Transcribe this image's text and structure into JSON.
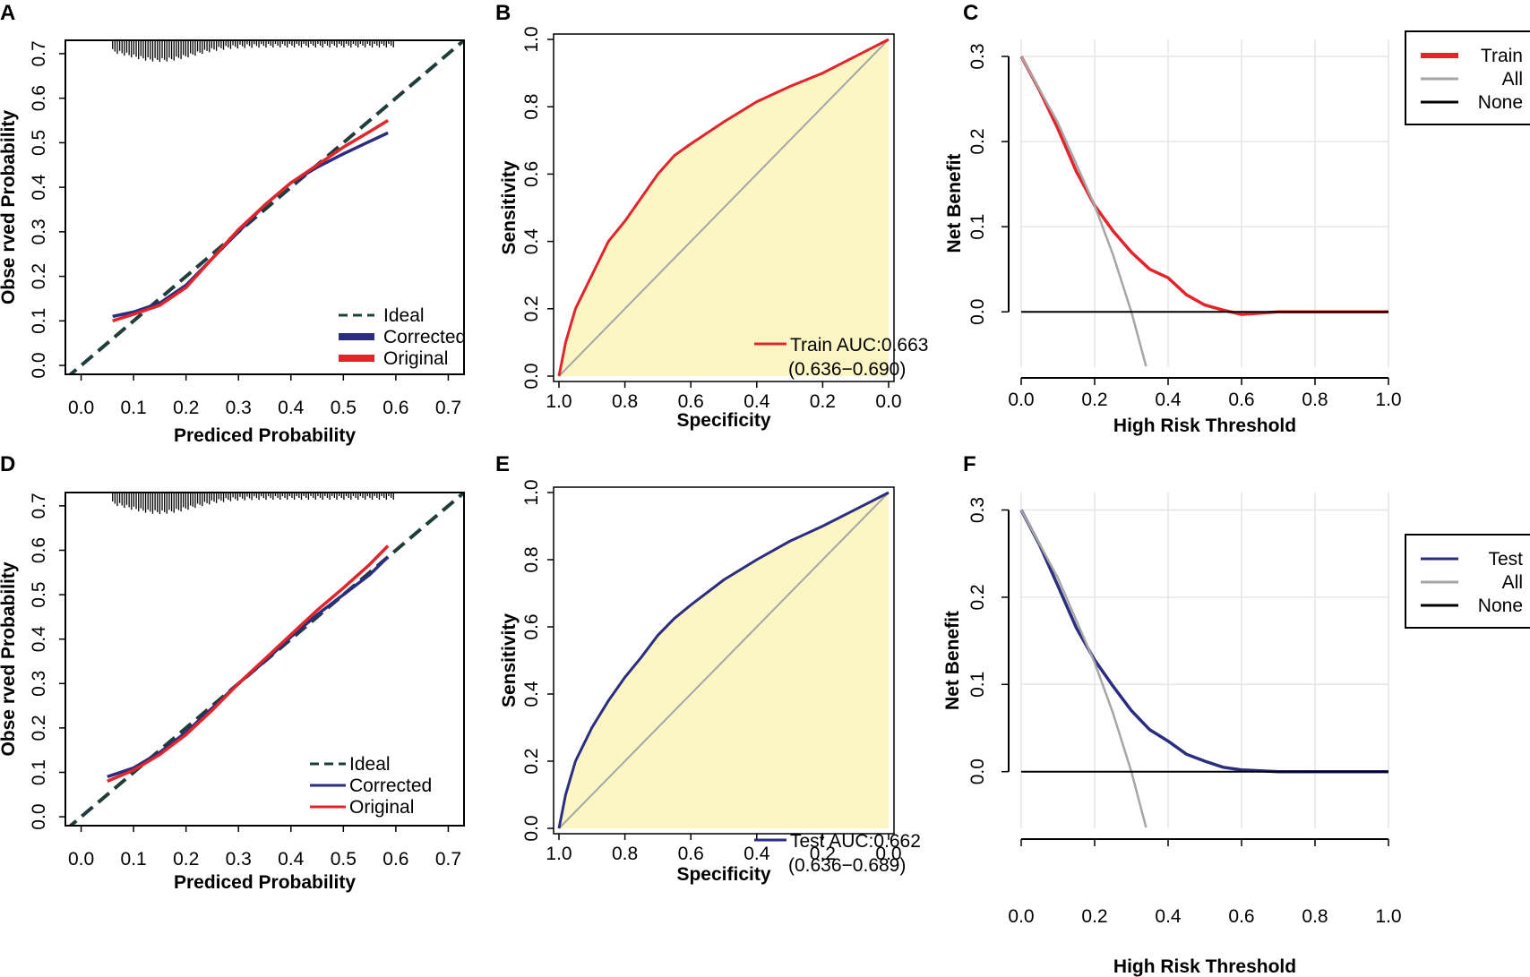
{
  "figure": {
    "panels": [
      "A",
      "B",
      "C",
      "D",
      "E",
      "F"
    ]
  },
  "chart_data": [
    {
      "panel": "A",
      "type": "line",
      "subtype": "calibration",
      "xlabel": "Prediced Probability",
      "ylabel": "Obse rved Probability",
      "xlim": [
        -0.03,
        0.73
      ],
      "ylim": [
        -0.02,
        0.73
      ],
      "xticks": [
        "0.0",
        "0.1",
        "0.2",
        "0.3",
        "0.4",
        "0.5",
        "0.6",
        "0.7"
      ],
      "yticks": [
        "0.0",
        "0.1",
        "0.2",
        "0.3",
        "0.4",
        "0.5",
        "0.6",
        "0.7"
      ],
      "legend": {
        "position": "bottom-right",
        "entries": [
          "Ideal",
          "Corrected",
          "Original"
        ]
      },
      "rug": "top",
      "series": [
        {
          "name": "Ideal",
          "color": "#1f3d3a",
          "style": "dashed",
          "x": [
            -0.03,
            0.73
          ],
          "y": [
            -0.03,
            0.73
          ]
        },
        {
          "name": "Corrected",
          "color": "#2b2d7f",
          "x": [
            0.06,
            0.1,
            0.15,
            0.2,
            0.25,
            0.3,
            0.35,
            0.4,
            0.45,
            0.5,
            0.55,
            0.585
          ],
          "y": [
            0.11,
            0.12,
            0.14,
            0.18,
            0.24,
            0.3,
            0.36,
            0.41,
            0.445,
            0.475,
            0.503,
            0.522
          ]
        },
        {
          "name": "Original",
          "color": "#e3242b",
          "x": [
            0.06,
            0.1,
            0.15,
            0.2,
            0.25,
            0.3,
            0.35,
            0.4,
            0.45,
            0.5,
            0.55,
            0.585
          ],
          "y": [
            0.1,
            0.115,
            0.135,
            0.175,
            0.24,
            0.305,
            0.36,
            0.41,
            0.45,
            0.49,
            0.525,
            0.55
          ]
        }
      ]
    },
    {
      "panel": "B",
      "type": "area",
      "subtype": "roc",
      "xlabel": "Specificity",
      "ylabel": "Sensitivity",
      "xlim": [
        1.0,
        0.0
      ],
      "ylim": [
        0.0,
        1.0
      ],
      "xticks": [
        "1.0",
        "0.8",
        "0.6",
        "0.4",
        "0.2",
        "0.0"
      ],
      "yticks": [
        "0.0",
        "0.2",
        "0.4",
        "0.6",
        "0.8",
        "1.0"
      ],
      "fill_color": "#fbf6c4",
      "legend": {
        "position": "bottom-right",
        "label": "Train AUC:0.663",
        "ci": "(0.636−0.690)",
        "color": "#e3242b"
      },
      "series": [
        {
          "name": "Train",
          "color": "#e3242b",
          "specificity": [
            1.0,
            0.98,
            0.95,
            0.9,
            0.85,
            0.8,
            0.75,
            0.7,
            0.65,
            0.6,
            0.5,
            0.4,
            0.3,
            0.2,
            0.1,
            0.05,
            0.0
          ],
          "sensitivity": [
            0.0,
            0.1,
            0.2,
            0.3,
            0.4,
            0.46,
            0.53,
            0.6,
            0.655,
            0.69,
            0.755,
            0.815,
            0.86,
            0.9,
            0.95,
            0.975,
            1.0
          ]
        },
        {
          "name": "Reference",
          "color": "#a6a6a6",
          "specificity": [
            1.0,
            0.0
          ],
          "sensitivity": [
            0.0,
            1.0
          ]
        }
      ]
    },
    {
      "panel": "C",
      "type": "line",
      "subtype": "decision-curve",
      "xlabel": "High Risk Threshold",
      "ylabel": "Net Benefit",
      "xlim": [
        0.0,
        1.0
      ],
      "ylim": [
        -0.065,
        0.32
      ],
      "xticks": [
        "0.0",
        "0.2",
        "0.4",
        "0.6",
        "0.8",
        "1.0"
      ],
      "yticks": [
        "0.0",
        "0.1",
        "0.2",
        "0.3"
      ],
      "grid": true,
      "legend": {
        "position": "top-right",
        "entries": [
          "Train",
          "All",
          "None"
        ]
      },
      "series": [
        {
          "name": "Train",
          "color": "#e3242b",
          "x": [
            0.0,
            0.05,
            0.1,
            0.15,
            0.2,
            0.25,
            0.3,
            0.35,
            0.4,
            0.45,
            0.5,
            0.55,
            0.6,
            0.7,
            0.8,
            1.0
          ],
          "y": [
            0.3,
            0.26,
            0.215,
            0.165,
            0.125,
            0.095,
            0.07,
            0.05,
            0.04,
            0.02,
            0.008,
            0.002,
            -0.003,
            0.0,
            0.0,
            0.0
          ]
        },
        {
          "name": "All",
          "color": "#a6a6a6",
          "x": [
            0.0,
            0.1,
            0.2,
            0.25,
            0.3,
            0.34
          ],
          "y": [
            0.3,
            0.222,
            0.125,
            0.067,
            0.0,
            -0.064
          ]
        },
        {
          "name": "None",
          "color": "#000000",
          "x": [
            0.0,
            1.0
          ],
          "y": [
            0.0,
            0.0
          ]
        }
      ]
    },
    {
      "panel": "D",
      "type": "line",
      "subtype": "calibration",
      "xlabel": "Prediced Probability",
      "ylabel": "Obse rved Probability",
      "xlim": [
        -0.03,
        0.73
      ],
      "ylim": [
        -0.02,
        0.73
      ],
      "xticks": [
        "0.0",
        "0.1",
        "0.2",
        "0.3",
        "0.4",
        "0.5",
        "0.6",
        "0.7"
      ],
      "yticks": [
        "0.0",
        "0.1",
        "0.2",
        "0.3",
        "0.4",
        "0.5",
        "0.6",
        "0.7"
      ],
      "legend": {
        "position": "bottom-right",
        "entries": [
          "Ideal",
          "Corrected",
          "Original"
        ]
      },
      "rug": "top",
      "series": [
        {
          "name": "Ideal",
          "color": "#1f3d3a",
          "style": "dashed",
          "x": [
            -0.03,
            0.73
          ],
          "y": [
            -0.03,
            0.73
          ]
        },
        {
          "name": "Corrected",
          "color": "#2b2d7f",
          "x": [
            0.05,
            0.1,
            0.15,
            0.2,
            0.25,
            0.3,
            0.35,
            0.4,
            0.45,
            0.5,
            0.55,
            0.585
          ],
          "y": [
            0.09,
            0.11,
            0.145,
            0.19,
            0.245,
            0.3,
            0.35,
            0.405,
            0.455,
            0.5,
            0.545,
            0.585
          ]
        },
        {
          "name": "Original",
          "color": "#e3242b",
          "x": [
            0.05,
            0.1,
            0.15,
            0.2,
            0.25,
            0.3,
            0.35,
            0.4,
            0.45,
            0.5,
            0.55,
            0.585
          ],
          "y": [
            0.08,
            0.105,
            0.14,
            0.185,
            0.24,
            0.3,
            0.355,
            0.41,
            0.465,
            0.515,
            0.568,
            0.61
          ]
        }
      ]
    },
    {
      "panel": "E",
      "type": "area",
      "subtype": "roc",
      "xlabel": "Specificity",
      "ylabel": "Sensitivity",
      "xlim": [
        1.0,
        0.0
      ],
      "ylim": [
        0.0,
        1.0
      ],
      "xticks": [
        "1.0",
        "0.8",
        "0.6",
        "0.4",
        "0.2",
        "0.0"
      ],
      "yticks": [
        "0.0",
        "0.2",
        "0.4",
        "0.6",
        "0.8",
        "1.0"
      ],
      "fill_color": "#fbf6c4",
      "legend": {
        "position": "bottom-right",
        "label": "Test AUC:0.662",
        "ci": "(0.636−0.689)",
        "color": "#2b2d7f"
      },
      "series": [
        {
          "name": "Test",
          "color": "#2b2d7f",
          "specificity": [
            1.0,
            0.98,
            0.95,
            0.9,
            0.85,
            0.8,
            0.75,
            0.7,
            0.65,
            0.6,
            0.5,
            0.4,
            0.3,
            0.2,
            0.1,
            0.05,
            0.0
          ],
          "sensitivity": [
            0.0,
            0.1,
            0.2,
            0.3,
            0.38,
            0.45,
            0.51,
            0.575,
            0.625,
            0.665,
            0.74,
            0.8,
            0.855,
            0.9,
            0.95,
            0.975,
            1.0
          ]
        },
        {
          "name": "Reference",
          "color": "#a6a6a6",
          "specificity": [
            1.0,
            0.0
          ],
          "sensitivity": [
            0.0,
            1.0
          ]
        }
      ]
    },
    {
      "panel": "F",
      "type": "line",
      "subtype": "decision-curve",
      "xlabel": "High Risk Threshold",
      "ylabel": "Net Benefit",
      "xlim": [
        0.0,
        1.0
      ],
      "ylim": [
        -0.065,
        0.32
      ],
      "xticks": [
        "0.0",
        "0.2",
        "0.4",
        "0.6",
        "0.8",
        "1.0"
      ],
      "yticks": [
        "0.0",
        "0.1",
        "0.2",
        "0.3"
      ],
      "grid": true,
      "legend": {
        "position": "top-right",
        "entries": [
          "Test",
          "All",
          "None"
        ]
      },
      "series": [
        {
          "name": "Test",
          "color": "#2b2d7f",
          "x": [
            0.0,
            0.05,
            0.1,
            0.15,
            0.2,
            0.25,
            0.3,
            0.35,
            0.4,
            0.45,
            0.5,
            0.55,
            0.6,
            0.7,
            0.8,
            1.0
          ],
          "y": [
            0.3,
            0.26,
            0.213,
            0.165,
            0.128,
            0.098,
            0.07,
            0.048,
            0.035,
            0.02,
            0.012,
            0.005,
            0.002,
            0.0,
            0.0,
            0.0
          ]
        },
        {
          "name": "All",
          "color": "#a6a6a6",
          "x": [
            0.0,
            0.1,
            0.2,
            0.25,
            0.3,
            0.34
          ],
          "y": [
            0.3,
            0.222,
            0.125,
            0.067,
            0.0,
            -0.064
          ]
        },
        {
          "name": "None",
          "color": "#000000",
          "x": [
            0.0,
            1.0
          ],
          "y": [
            0.0,
            0.0
          ]
        }
      ]
    }
  ]
}
